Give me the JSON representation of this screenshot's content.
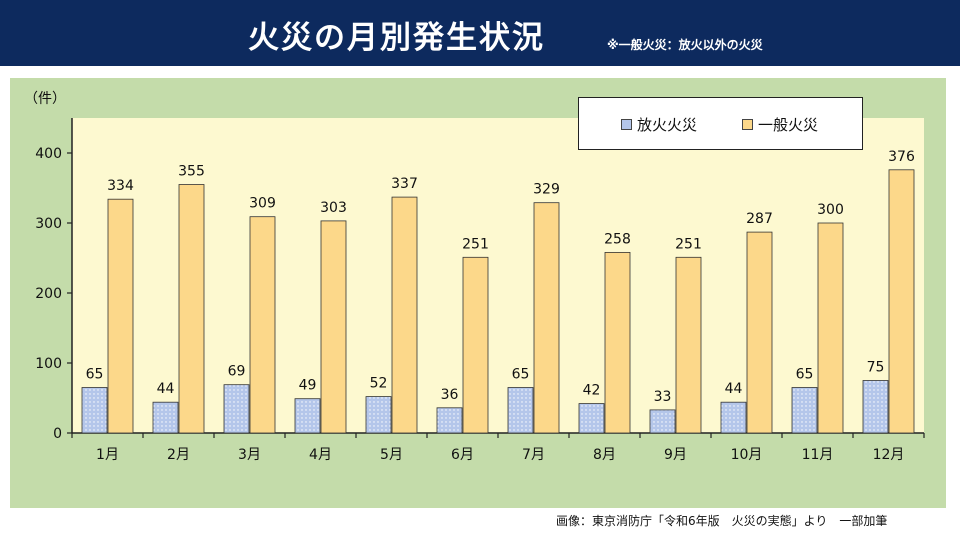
{
  "header": {
    "title": "火災の月別発生状況",
    "note": "※一般火災：放火以外の火災"
  },
  "colors": {
    "header_bg": "#0d2a5e",
    "panel_bg": "#c4dcaa",
    "plot_bg": "#fdf9d0",
    "arson": "#b4c6ea",
    "general": "#fcd88a"
  },
  "chart_data": {
    "type": "bar",
    "title": "火災の月別発生状況",
    "ylabel": "（件）",
    "xlabel": "",
    "ylim": [
      0,
      450
    ],
    "yticks": [
      0,
      100,
      200,
      300,
      400
    ],
    "grid": false,
    "legend_position": "top-right",
    "categories": [
      "1月",
      "2月",
      "3月",
      "4月",
      "5月",
      "6月",
      "7月",
      "8月",
      "9月",
      "10月",
      "11月",
      "12月"
    ],
    "series": [
      {
        "name": "放火火災",
        "values": [
          65,
          44,
          69,
          49,
          52,
          36,
          65,
          42,
          33,
          44,
          65,
          75
        ]
      },
      {
        "name": "一般火災",
        "values": [
          334,
          355,
          309,
          303,
          337,
          251,
          329,
          258,
          251,
          287,
          300,
          376
        ]
      }
    ]
  },
  "source": "画像：東京消防庁「令和6年版　火災の実態」より　一部加筆"
}
